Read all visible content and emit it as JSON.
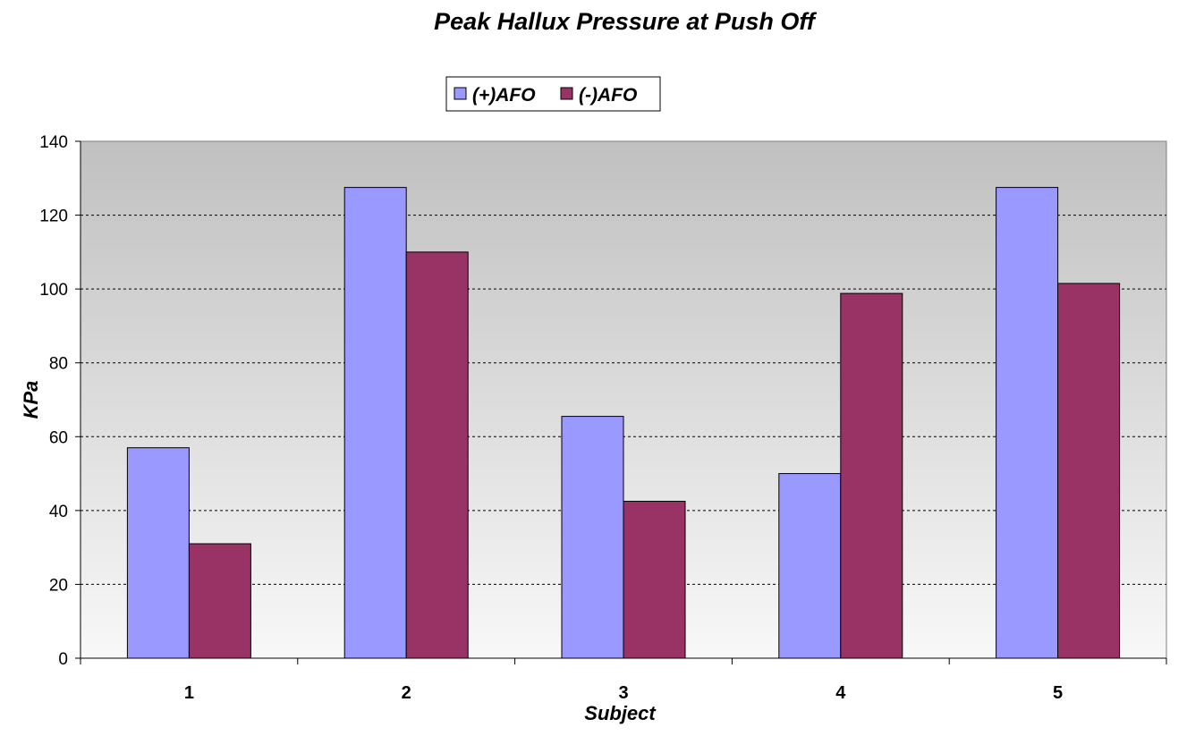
{
  "chart_data": {
    "type": "bar",
    "title": "Peak Hallux Pressure at Push Off",
    "xlabel": "Subject",
    "ylabel": "KPa",
    "categories": [
      "1",
      "2",
      "3",
      "4",
      "5"
    ],
    "series": [
      {
        "name": "(+)AFO",
        "color": "#9999ff",
        "values": [
          57,
          127.5,
          65.5,
          50,
          127.5
        ]
      },
      {
        "name": "(-)AFO",
        "color": "#993366",
        "values": [
          31,
          110,
          42.5,
          98.8,
          101.5
        ]
      }
    ],
    "ylim": [
      0,
      140
    ],
    "yticks": [
      0,
      20,
      40,
      60,
      80,
      100,
      120,
      140
    ],
    "grid": true,
    "legend": "top-center",
    "plot_background": "gradient gray to white"
  }
}
